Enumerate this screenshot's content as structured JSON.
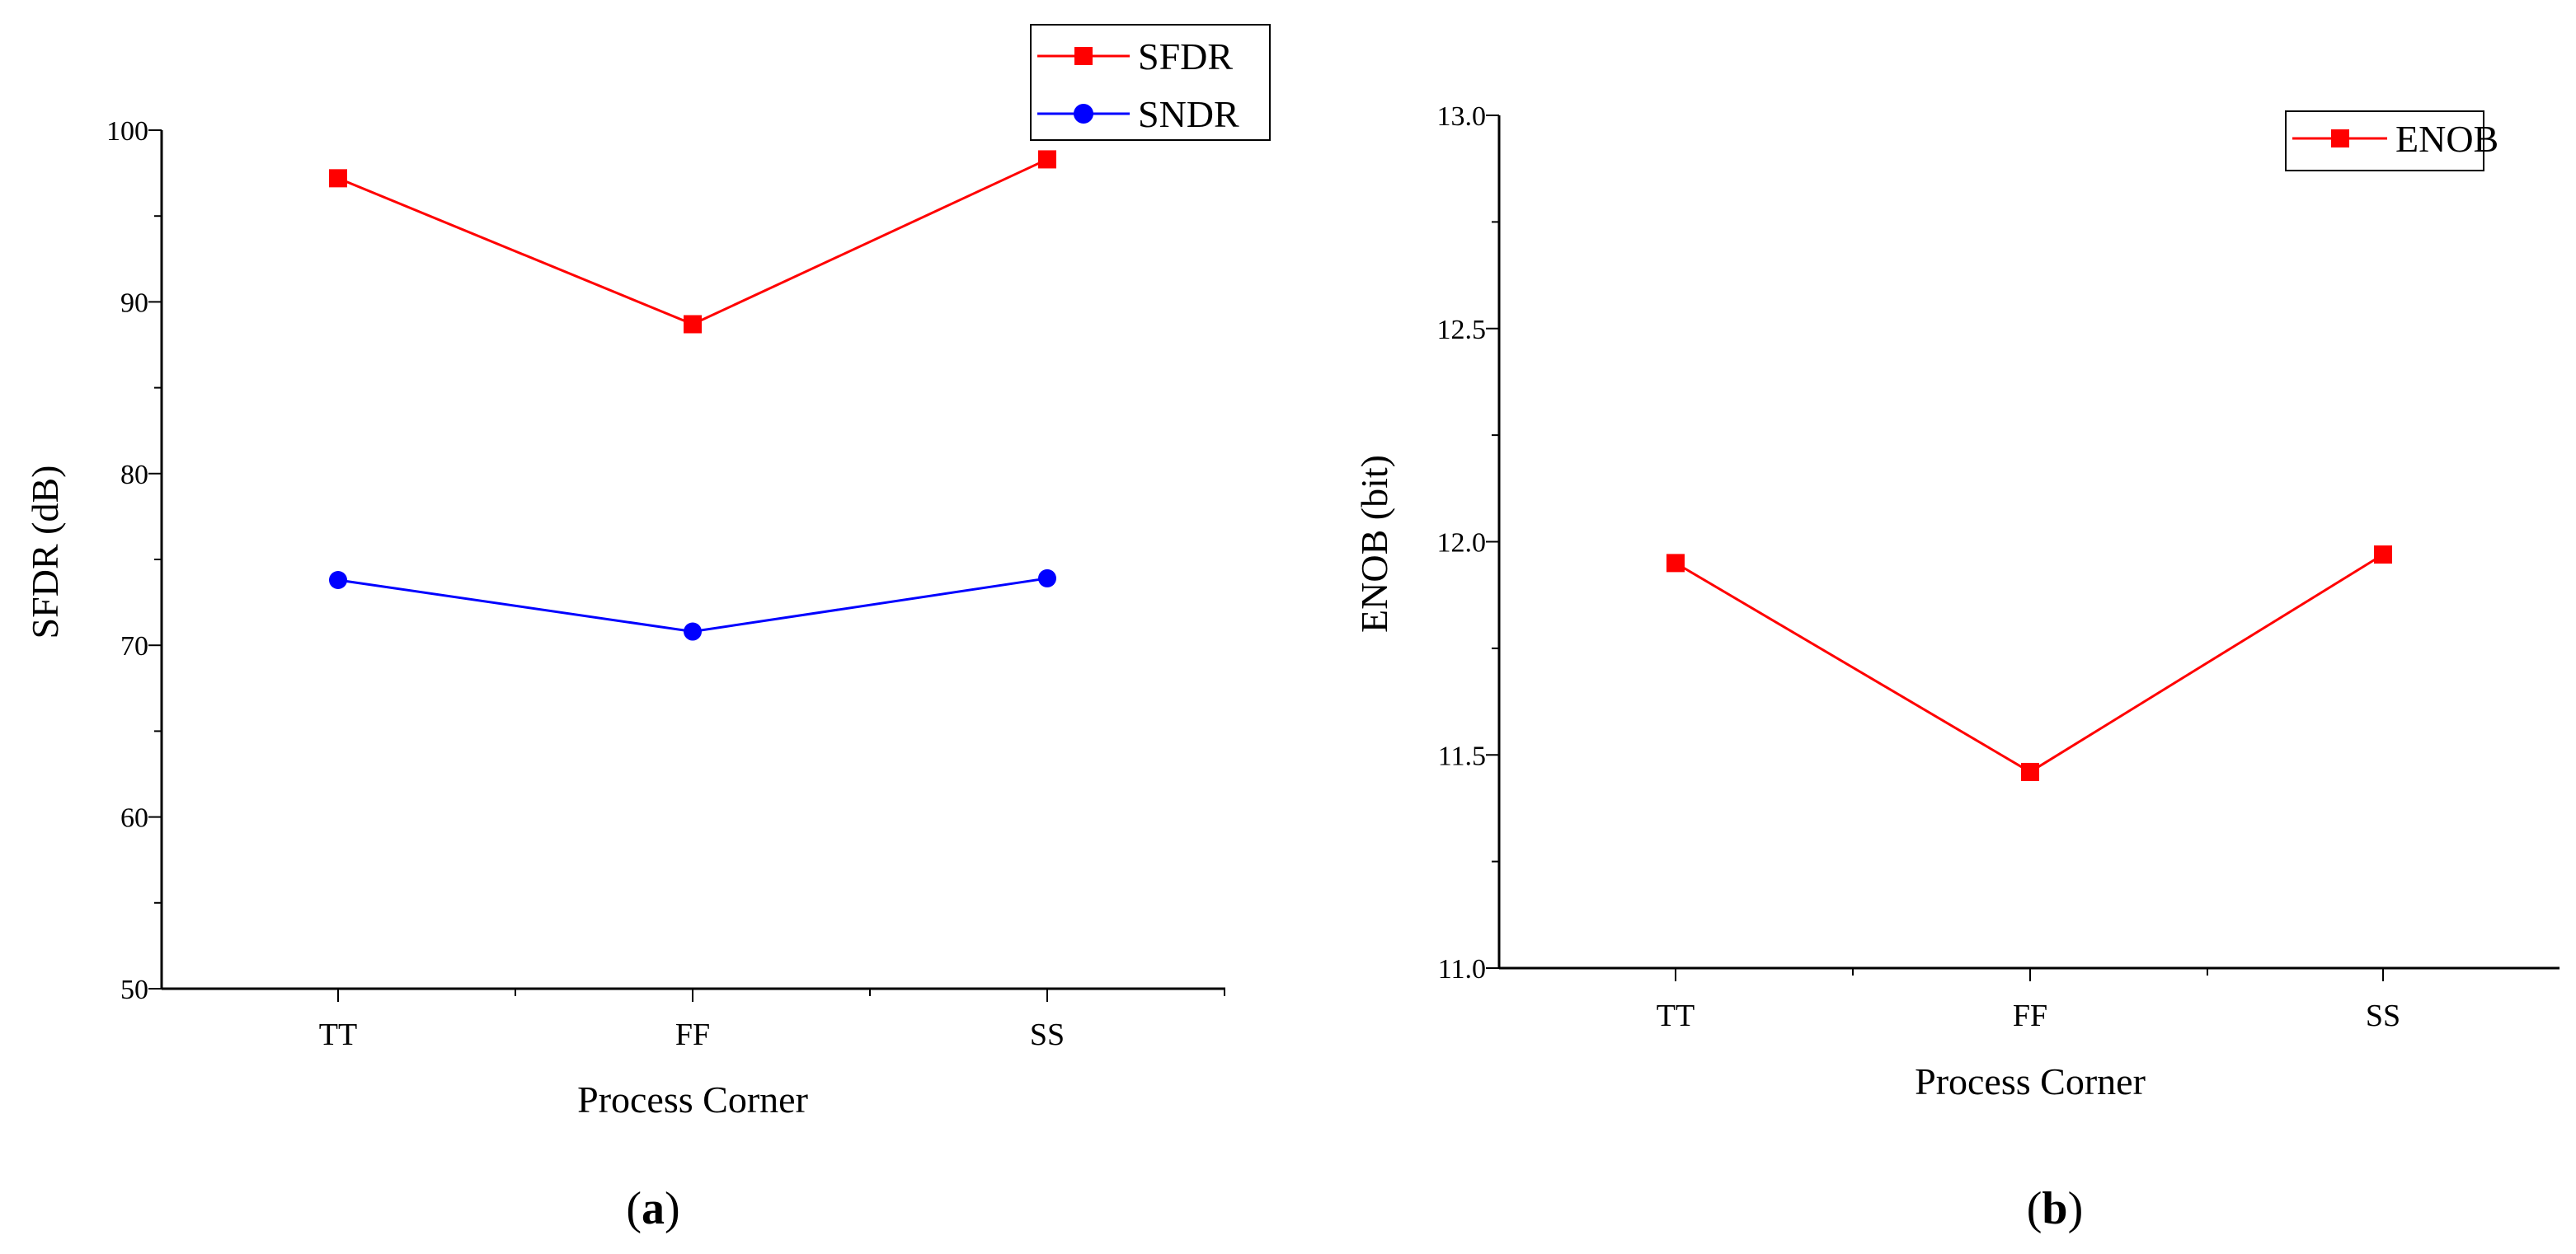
{
  "chart_data": [
    {
      "type": "line",
      "panel": "a",
      "panel_label": "a",
      "categories": [
        "TT",
        "FF",
        "SS"
      ],
      "series": [
        {
          "name": "SFDR",
          "values": [
            97.2,
            88.7,
            98.3
          ],
          "color": "#ff0000",
          "marker": "square"
        },
        {
          "name": "SNDR",
          "values": [
            73.8,
            70.8,
            73.9
          ],
          "color": "#0000ff",
          "marker": "circle"
        }
      ],
      "xlabel": "Process Corner",
      "ylabel": "SFDR (dB)",
      "ylim": [
        50,
        100
      ],
      "yticks": [
        "50",
        "60",
        "70",
        "80",
        "90",
        "100"
      ],
      "legend": "top-right",
      "grid": false
    },
    {
      "type": "line",
      "panel": "b",
      "panel_label": "b",
      "categories": [
        "TT",
        "FF",
        "SS"
      ],
      "series": [
        {
          "name": "ENOB",
          "values": [
            11.95,
            11.46,
            11.97
          ],
          "color": "#ff0000",
          "marker": "square"
        }
      ],
      "xlabel": "Process Corner",
      "ylabel": "ENOB (bit)",
      "ylim": [
        11.0,
        13.0
      ],
      "yticks": [
        "11.0",
        "11.5",
        "12.0",
        "12.5",
        "13.0"
      ],
      "legend": "top-right",
      "grid": false
    }
  ]
}
